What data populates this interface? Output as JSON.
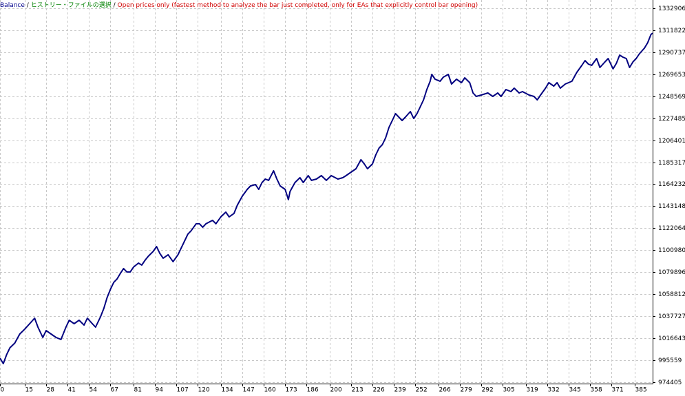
{
  "chart_data": {
    "type": "line",
    "title": "Balance",
    "separator": "/",
    "history_label": "ヒストリー・ファイルの選択",
    "model_label": "Open prices only (fastest method to analyze the bar just completed, only for EAs that explicitly control bar opening)",
    "color": "#000080",
    "grid": true,
    "xlim": [
      0,
      396
    ],
    "xticks": [
      0,
      15,
      28,
      41,
      54,
      67,
      81,
      94,
      107,
      120,
      134,
      147,
      160,
      173,
      186,
      200,
      213,
      226,
      239,
      252,
      266,
      279,
      292,
      305,
      319,
      332,
      345,
      358,
      371,
      385
    ],
    "ylim": [
      973085,
      1340829
    ],
    "yticks": [
      974405,
      995559,
      1016643,
      1037727,
      1058812,
      1079896,
      1100980,
      1122064,
      1143148,
      1164232,
      1185317,
      1206401,
      1227485,
      1248569,
      1269653,
      1290737,
      1311822,
      1332906
    ],
    "x": [
      0,
      2,
      4,
      6,
      9,
      12,
      15,
      18,
      21,
      23,
      26,
      28,
      31,
      34,
      37,
      40,
      42,
      45,
      48,
      51,
      53,
      56,
      58,
      61,
      63,
      65,
      67,
      69,
      71,
      73,
      75,
      77,
      79,
      81,
      84,
      86,
      88,
      90,
      93,
      95,
      97,
      99,
      102,
      105,
      108,
      111,
      114,
      116,
      119,
      121,
      123,
      125,
      129,
      131,
      134,
      137,
      139,
      142,
      144,
      147,
      150,
      152,
      155,
      157,
      159,
      161,
      163,
      166,
      168,
      170,
      173,
      175,
      176,
      179,
      182,
      184,
      187,
      189,
      192,
      195,
      198,
      201,
      205,
      208,
      210,
      213,
      216,
      219,
      221,
      223,
      226,
      228,
      230,
      232,
      234,
      236,
      238,
      240,
      242,
      244,
      246,
      249,
      251,
      253,
      255,
      257,
      259,
      261,
      262,
      264,
      267,
      269,
      272,
      274,
      277,
      280,
      282,
      285,
      287,
      289,
      292,
      296,
      299,
      302,
      304,
      307,
      310,
      312,
      315,
      317,
      321,
      324,
      326,
      328,
      331,
      333,
      336,
      338,
      340,
      343,
      347,
      350,
      353,
      355,
      357,
      359,
      362,
      364,
      367,
      369,
      372,
      374,
      376,
      378,
      380,
      382,
      384,
      386,
      388,
      391,
      393,
      395,
      396
    ],
    "values": [
      997500,
      992200,
      1000800,
      1007400,
      1012000,
      1020600,
      1025300,
      1030500,
      1035800,
      1027200,
      1017300,
      1023900,
      1020600,
      1017300,
      1015400,
      1027200,
      1033800,
      1030500,
      1033800,
      1029200,
      1035800,
      1030500,
      1027200,
      1037100,
      1045100,
      1055600,
      1063500,
      1070100,
      1073400,
      1078700,
      1083400,
      1080100,
      1080100,
      1084700,
      1088600,
      1086700,
      1091300,
      1095200,
      1099900,
      1104500,
      1097900,
      1093300,
      1096600,
      1090000,
      1096600,
      1106500,
      1116400,
      1119700,
      1126300,
      1126300,
      1123000,
      1126300,
      1129600,
      1126300,
      1132900,
      1137500,
      1132900,
      1136200,
      1144100,
      1152700,
      1159300,
      1162600,
      1163900,
      1159300,
      1165900,
      1169200,
      1167900,
      1177100,
      1169200,
      1162600,
      1159300,
      1149400,
      1157300,
      1165900,
      1170500,
      1165900,
      1172500,
      1167900,
      1169200,
      1172500,
      1167900,
      1172500,
      1169200,
      1170500,
      1172500,
      1175800,
      1179100,
      1187700,
      1183700,
      1179100,
      1183700,
      1192300,
      1198900,
      1202200,
      1208800,
      1218700,
      1225300,
      1231900,
      1228600,
      1225300,
      1228600,
      1233900,
      1227300,
      1231900,
      1238500,
      1245100,
      1255000,
      1262900,
      1269500,
      1264900,
      1262900,
      1266900,
      1269500,
      1260300,
      1264900,
      1261600,
      1266200,
      1261600,
      1251700,
      1248400,
      1249700,
      1251700,
      1248400,
      1251700,
      1248400,
      1255000,
      1253000,
      1256300,
      1251700,
      1253000,
      1249700,
      1248400,
      1245100,
      1249700,
      1256300,
      1261600,
      1258300,
      1261600,
      1256300,
      1260300,
      1262900,
      1271500,
      1278100,
      1282700,
      1279400,
      1278100,
      1284700,
      1276100,
      1281400,
      1284700,
      1274800,
      1280100,
      1288000,
      1286000,
      1284700,
      1276100,
      1281400,
      1284700,
      1289300,
      1294600,
      1299900,
      1307800,
      1309100
    ]
  }
}
